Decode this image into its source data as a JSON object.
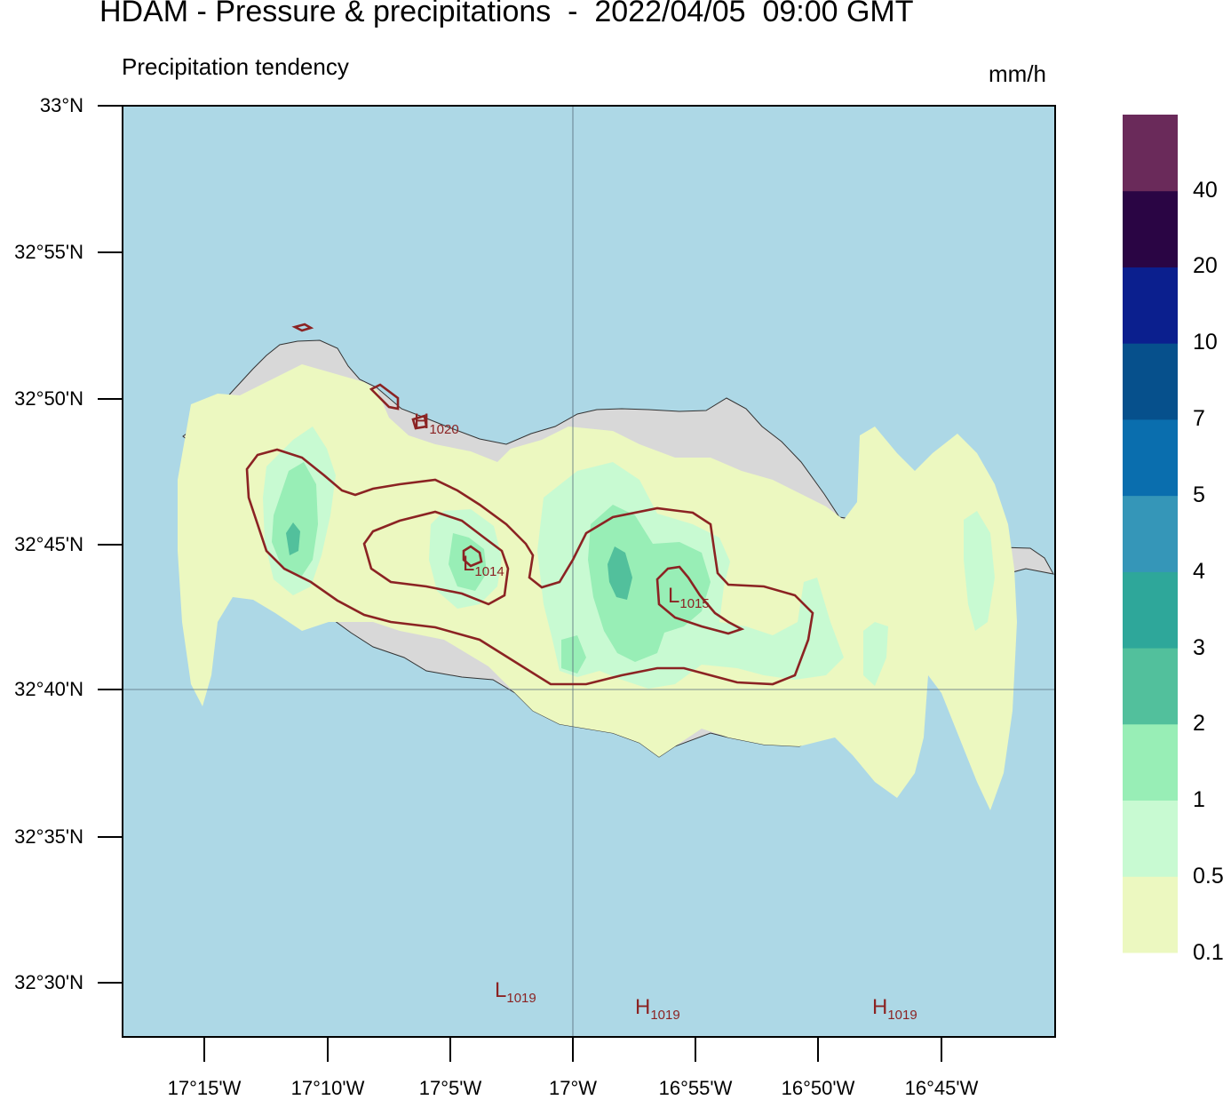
{
  "header": {
    "title": "HDAM - Pressure & precipitations  -  2022/04/05  09:00 GMT",
    "subtitle": "Precipitation tendency",
    "units": "mm/h"
  },
  "axes": {
    "lat_labels": [
      "33°N",
      "32°55'N",
      "32°50'N",
      "32°45'N",
      "32°40'N",
      "32°35'N",
      "32°30'N"
    ],
    "lon_labels": [
      "17°15'W",
      "17°10'W",
      "17°5'W",
      "17°W",
      "16°55'W",
      "16°50'W",
      "16°45'W"
    ]
  },
  "colorbar": {
    "levels": [
      "0.1",
      "0.5",
      "1",
      "2",
      "3",
      "4",
      "5",
      "7",
      "10",
      "20",
      "40"
    ],
    "colors": [
      "#ecf8c0",
      "#c8fad2",
      "#98eeb6",
      "#52c09c",
      "#2ea79a",
      "#3596b8",
      "#0a6eae",
      "#06508c",
      "#0b1f8e",
      "#2a0544",
      "#6a2a5a"
    ]
  },
  "map": {
    "ocean_color": "#add8e6",
    "land_color": "#d8d8d8",
    "isobar_color": "#8b2323",
    "pressure_labels": [
      {
        "type": "H",
        "value": "1020"
      },
      {
        "type": "L",
        "value": "1014"
      },
      {
        "type": "L",
        "value": "1015"
      },
      {
        "type": "L",
        "value": "1019"
      },
      {
        "type": "H",
        "value": "1019"
      },
      {
        "type": "H",
        "value": "1019"
      }
    ]
  }
}
